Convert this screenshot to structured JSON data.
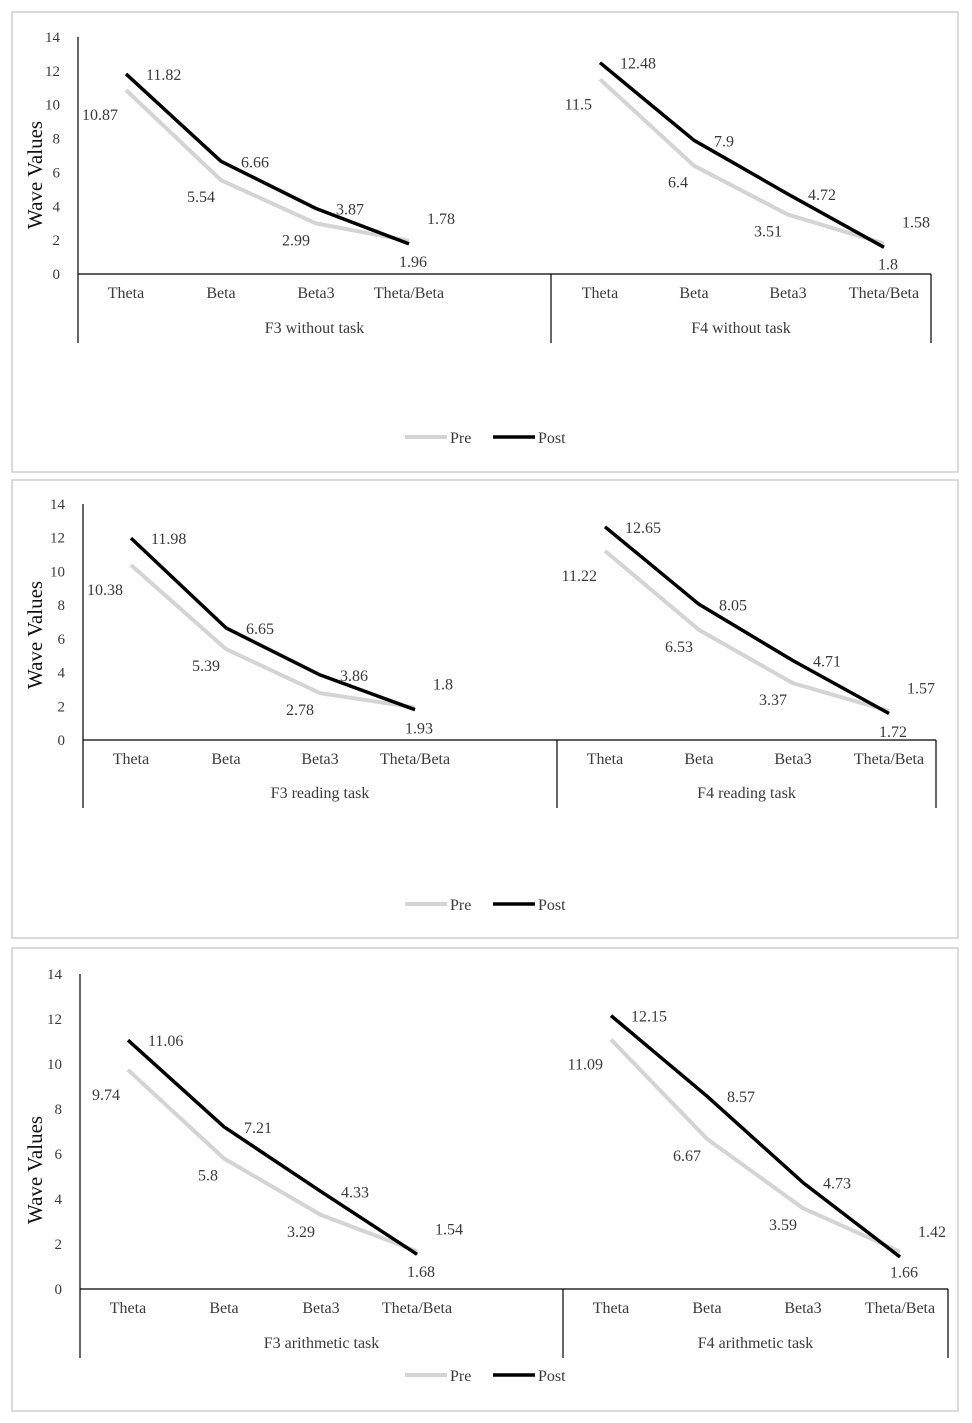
{
  "chart_data": [
    {
      "type": "line",
      "ylabel": "Wave Values",
      "ylim": [
        0,
        14
      ],
      "yticks": [
        0,
        2,
        4,
        6,
        8,
        10,
        12,
        14
      ],
      "grid": false,
      "legend_position": "bottom",
      "groups": [
        {
          "label": "F3 without task",
          "categories": [
            "Theta",
            "Beta",
            "Beta3",
            "Theta/Beta"
          ],
          "series": [
            {
              "name": "Pre",
              "color": "#d4d4d4",
              "values": [
                10.87,
                5.54,
                2.99,
                1.96
              ],
              "labels": [
                "10.87",
                "5.54",
                "2.99",
                "1.96"
              ]
            },
            {
              "name": "Post",
              "color": "#000000",
              "values": [
                11.82,
                6.66,
                3.87,
                1.78
              ],
              "labels": [
                "11.82",
                "6.66",
                "3.87",
                "1.78"
              ]
            }
          ]
        },
        {
          "label": "F4 without task",
          "categories": [
            "Theta",
            "Beta",
            "Beta3",
            "Theta/Beta"
          ],
          "series": [
            {
              "name": "Pre",
              "color": "#d4d4d4",
              "values": [
                11.5,
                6.4,
                3.51,
                1.8
              ],
              "labels": [
                "11.5",
                "6.4",
                "3.51",
                "1.8"
              ]
            },
            {
              "name": "Post",
              "color": "#000000",
              "values": [
                12.48,
                7.9,
                4.72,
                1.58
              ],
              "labels": [
                "12.48",
                "7.9",
                "4.72",
                "1.58"
              ]
            }
          ]
        }
      ]
    },
    {
      "type": "line",
      "ylabel": "Wave Values",
      "ylim": [
        0,
        14
      ],
      "yticks": [
        0,
        2,
        4,
        6,
        8,
        10,
        12,
        14
      ],
      "grid": false,
      "legend_position": "bottom",
      "groups": [
        {
          "label": "F3 reading task",
          "categories": [
            "Theta",
            "Beta",
            "Beta3",
            "Theta/Beta"
          ],
          "series": [
            {
              "name": "Pre",
              "color": "#d4d4d4",
              "values": [
                10.38,
                5.39,
                2.78,
                1.93
              ],
              "labels": [
                "10.38",
                "5.39",
                "2.78",
                "1.93"
              ]
            },
            {
              "name": "Post",
              "color": "#000000",
              "values": [
                11.98,
                6.65,
                3.86,
                1.8
              ],
              "labels": [
                "11.98",
                "6.65",
                "3.86",
                "1.8"
              ]
            }
          ]
        },
        {
          "label": "F4 reading task",
          "categories": [
            "Theta",
            "Beta",
            "Beta3",
            "Theta/Beta"
          ],
          "series": [
            {
              "name": "Pre",
              "color": "#d4d4d4",
              "values": [
                11.22,
                6.53,
                3.37,
                1.72
              ],
              "labels": [
                "11.22",
                "6.53",
                "3.37",
                "1.72"
              ]
            },
            {
              "name": "Post",
              "color": "#000000",
              "values": [
                12.65,
                8.05,
                4.71,
                1.57
              ],
              "labels": [
                "12.65",
                "8.05",
                "4.71",
                "1.57"
              ]
            }
          ]
        }
      ]
    },
    {
      "type": "line",
      "ylabel": "Wave Values",
      "ylim": [
        0,
        14
      ],
      "yticks": [
        0,
        2,
        4,
        6,
        8,
        10,
        12,
        14
      ],
      "grid": false,
      "legend_position": "bottom",
      "groups": [
        {
          "label": "F3 arithmetic task",
          "categories": [
            "Theta",
            "Beta",
            "Beta3",
            "Theta/Beta"
          ],
          "series": [
            {
              "name": "Pre",
              "color": "#d4d4d4",
              "values": [
                9.74,
                5.8,
                3.29,
                1.68
              ],
              "labels": [
                "9.74",
                "5.8",
                "3.29",
                "1.68"
              ]
            },
            {
              "name": "Post",
              "color": "#000000",
              "values": [
                11.06,
                7.21,
                4.33,
                1.54
              ],
              "labels": [
                "11.06",
                "7.21",
                "4.33",
                "1.54"
              ]
            }
          ]
        },
        {
          "label": "F4 arithmetic task",
          "categories": [
            "Theta",
            "Beta",
            "Beta3",
            "Theta/Beta"
          ],
          "series": [
            {
              "name": "Pre",
              "color": "#d4d4d4",
              "values": [
                11.09,
                6.67,
                3.59,
                1.66
              ],
              "labels": [
                "11.09",
                "6.67",
                "3.59",
                "1.66"
              ]
            },
            {
              "name": "Post",
              "color": "#000000",
              "values": [
                12.15,
                8.57,
                4.73,
                1.42
              ],
              "labels": [
                "12.15",
                "8.57",
                "4.73",
                "1.42"
              ]
            }
          ]
        }
      ]
    }
  ]
}
